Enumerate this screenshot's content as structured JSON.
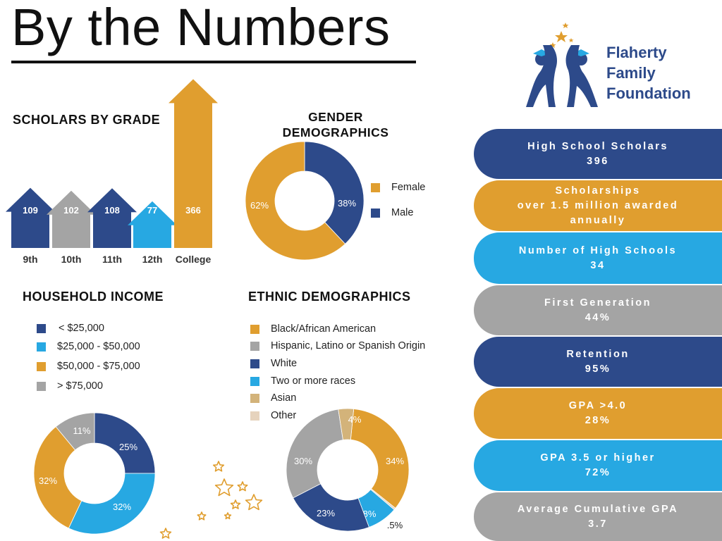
{
  "page": {
    "title": "By the Numbers",
    "logo": {
      "line1": "Flaherty",
      "line2": "Family",
      "line3": "Foundation"
    }
  },
  "colors": {
    "navy": "#2d4a8a",
    "gray": "#a4a4a4",
    "sky": "#27a8e2",
    "gold": "#e09e2f",
    "tan": "#d3b37a",
    "beige": "#e6d3bd"
  },
  "chart_data": [
    {
      "id": "grade",
      "type": "bar",
      "title": "SCHOLARS BY GRADE",
      "categories": [
        "9th",
        "10th",
        "11th",
        "12th",
        "College"
      ],
      "values": [
        109,
        102,
        108,
        77,
        366
      ],
      "colors": [
        "#2d4a8a",
        "#a4a4a4",
        "#2d4a8a",
        "#27a8e2",
        "#e09e2f"
      ]
    },
    {
      "id": "gender",
      "type": "pie",
      "title": "GENDER DEMOGRAPHICS",
      "slices": [
        {
          "label": "Male",
          "value": 38,
          "text": "38%",
          "color": "#2d4a8a"
        },
        {
          "label": "Female",
          "value": 62,
          "text": "62%",
          "color": "#e09e2f"
        }
      ],
      "legend": [
        {
          "label": "Female",
          "color": "#e09e2f"
        },
        {
          "label": "Male",
          "color": "#2d4a8a"
        }
      ]
    },
    {
      "id": "income",
      "type": "pie",
      "title": "HOUSEHOLD INCOME",
      "slices": [
        {
          "label": "< $25,000",
          "value": 25,
          "text": "25%",
          "color": "#2d4a8a"
        },
        {
          "label": "$25,000 - $50,000",
          "value": 32,
          "text": "32%",
          "color": "#27a8e2"
        },
        {
          "label": "$50,000 - $75,000",
          "value": 32,
          "text": "32%",
          "color": "#e09e2f"
        },
        {
          "label": "> $75,000",
          "value": 11,
          "text": "11%",
          "color": "#a4a4a4"
        }
      ],
      "legend": [
        {
          "label": "< $25,000",
          "color": "#2d4a8a"
        },
        {
          "label": "$25,000 - $50,000",
          "color": "#27a8e2"
        },
        {
          "label": "$50,000 - $75,000",
          "color": "#e09e2f"
        },
        {
          "label": "> $75,000",
          "color": "#a4a4a4"
        }
      ]
    },
    {
      "id": "ethnic",
      "type": "pie",
      "title": "ETHNIC DEMOGRAPHICS",
      "slices": [
        {
          "label": "Black/African American",
          "value": 34,
          "text": "34%",
          "color": "#e09e2f"
        },
        {
          "label": "Other",
          "value": 0.5,
          "text": ".5%",
          "color": "#e6d3bd"
        },
        {
          "label": "Two or more races",
          "value": 8,
          "text": "8%",
          "color": "#27a8e2"
        },
        {
          "label": "White",
          "value": 23,
          "text": "23%",
          "color": "#2d4a8a"
        },
        {
          "label": "Hispanic, Latino or Spanish Origin",
          "value": 30,
          "text": "30%",
          "color": "#a4a4a4"
        },
        {
          "label": "Asian",
          "value": 4,
          "text": "4%",
          "color": "#d3b37a"
        }
      ],
      "legend": [
        {
          "label": "Black/African American",
          "color": "#e09e2f"
        },
        {
          "label": "Hispanic, Latino or Spanish Origin",
          "color": "#a4a4a4"
        },
        {
          "label": "White",
          "color": "#2d4a8a"
        },
        {
          "label": "Two or more races",
          "color": "#27a8e2"
        },
        {
          "label": "Asian",
          "color": "#d3b37a"
        },
        {
          "label": "Other",
          "color": "#e6d3bd"
        }
      ]
    }
  ],
  "stats": [
    {
      "label": "High School Scholars",
      "value": "396",
      "color": "#2d4a8a"
    },
    {
      "label": "Scholarships\nover 1.5 million awarded\nannually",
      "value": "",
      "color": "#e09e2f"
    },
    {
      "label": "Number of High Schools",
      "value": "34",
      "color": "#27a8e2"
    },
    {
      "label": "First Generation",
      "value": "44%",
      "color": "#a4a4a4"
    },
    {
      "label": "Retention",
      "value": "95%",
      "color": "#2d4a8a"
    },
    {
      "label": "GPA >4.0",
      "value": "28%",
      "color": "#e09e2f"
    },
    {
      "label": "GPA 3.5 or higher",
      "value": "72%",
      "color": "#27a8e2"
    },
    {
      "label": "Average Cumulative GPA",
      "value": "3.7",
      "color": "#a4a4a4"
    }
  ]
}
